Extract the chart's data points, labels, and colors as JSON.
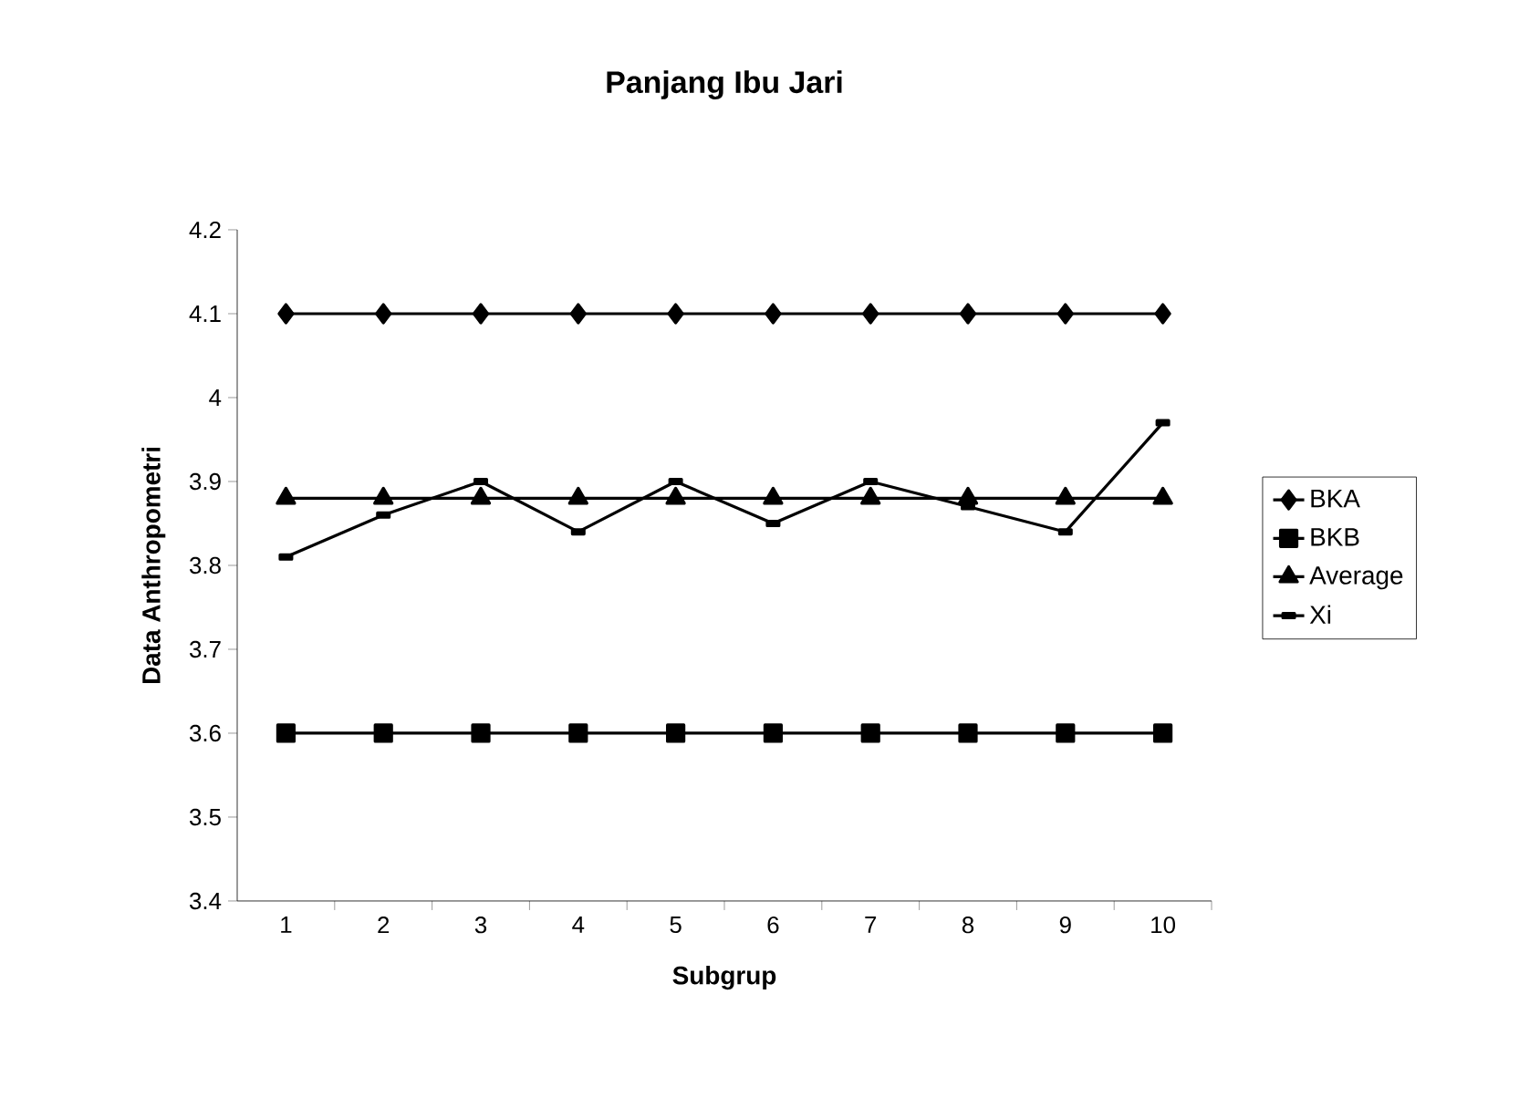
{
  "chart_data": {
    "type": "line",
    "title": "Panjang Ibu Jari",
    "xlabel": "Subgrup",
    "ylabel": "Data Anthropometri",
    "categories": [
      "1",
      "2",
      "3",
      "4",
      "5",
      "6",
      "7",
      "8",
      "9",
      "10"
    ],
    "series": [
      {
        "name": "BKA",
        "color": "#000000",
        "marker": "diamond",
        "values": [
          4.1,
          4.1,
          4.1,
          4.1,
          4.1,
          4.1,
          4.1,
          4.1,
          4.1,
          4.1
        ]
      },
      {
        "name": "BKB",
        "color": "#000000",
        "marker": "square",
        "values": [
          3.6,
          3.6,
          3.6,
          3.6,
          3.6,
          3.6,
          3.6,
          3.6,
          3.6,
          3.6
        ]
      },
      {
        "name": "Average",
        "color": "#000000",
        "marker": "triangle",
        "values": [
          3.88,
          3.88,
          3.88,
          3.88,
          3.88,
          3.88,
          3.88,
          3.88,
          3.88,
          3.88
        ]
      },
      {
        "name": "Xi",
        "color": "#000000",
        "marker": "square",
        "values": [
          3.81,
          3.86,
          3.9,
          3.84,
          3.9,
          3.85,
          3.9,
          3.87,
          3.84,
          3.97
        ]
      }
    ],
    "ylim": [
      3.4,
      4.2
    ],
    "yticks": [
      3.4,
      3.5,
      3.6,
      3.7,
      3.8,
      3.9,
      4,
      4.1,
      4.2
    ],
    "grid": false,
    "legend": "right",
    "line_style": "solid"
  }
}
